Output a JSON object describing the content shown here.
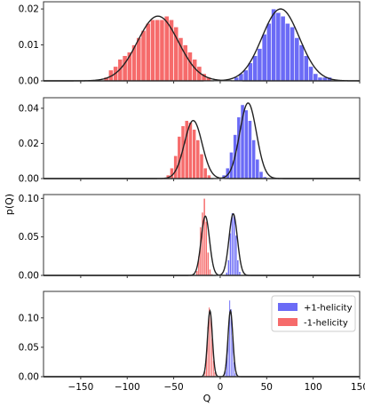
{
  "chart_data": {
    "type": "bar",
    "subtype": "histogram-with-gaussian-fit",
    "xlabel": "Q",
    "ylabel": "p(Q)",
    "xlim": [
      -190,
      150
    ],
    "xticks": [
      -150,
      -100,
      -50,
      0,
      50,
      100,
      150
    ],
    "xtick_labels": [
      "−150",
      "−100",
      "−50",
      "0",
      "50",
      "100",
      "150"
    ],
    "shared_x": true,
    "legend": {
      "placement": "top-right",
      "panel": 4,
      "entries": [
        {
          "label": "+1-helicity",
          "color": "#5b5bf5"
        },
        {
          "label": "-1-helicity",
          "color": "#f55b5b"
        }
      ]
    },
    "colors": {
      "plus": "#5b5bf5",
      "minus": "#f55b5b",
      "fit": "#222222"
    },
    "fit_line": "Gaussian fit over each histogram",
    "panels": [
      {
        "ylim": [
          0,
          0.022
        ],
        "yticks": [
          0.0,
          0.01,
          0.02
        ],
        "ytick_labels": [
          "0.00",
          "0.01",
          "0.02"
        ],
        "bin_width": 5,
        "series": [
          {
            "name": "-1-helicity",
            "color": "#f55b5b",
            "bin_start": -125,
            "values": [
              0.001,
              0.003,
              0.004,
              0.006,
              0.007,
              0.008,
              0.01,
              0.012,
              0.014,
              0.016,
              0.017,
              0.017,
              0.017,
              0.018,
              0.017,
              0.015,
              0.012,
              0.01,
              0.008,
              0.006,
              0.004,
              0.002,
              0.001
            ],
            "fit": {
              "mean": -67,
              "sigma": 22,
              "peak": 0.018
            }
          },
          {
            "name": "+1-helicity",
            "color": "#5b5bf5",
            "bin_start": 15,
            "values": [
              0.001,
              0.002,
              0.003,
              0.005,
              0.007,
              0.009,
              0.013,
              0.016,
              0.02,
              0.019,
              0.018,
              0.016,
              0.015,
              0.012,
              0.01,
              0.007,
              0.004,
              0.002,
              0.001,
              0.001,
              0.001
            ],
            "fit": {
              "mean": 65,
              "sigma": 20,
              "peak": 0.02
            }
          }
        ]
      },
      {
        "ylim": [
          0,
          0.046
        ],
        "yticks": [
          0.0,
          0.02,
          0.04
        ],
        "ytick_labels": [
          "0.00",
          "0.02",
          "0.04"
        ],
        "bin_width": 4,
        "series": [
          {
            "name": "-1-helicity",
            "color": "#f55b5b",
            "bin_start": -58,
            "values": [
              0.002,
              0.006,
              0.013,
              0.024,
              0.03,
              0.033,
              0.032,
              0.028,
              0.022,
              0.014,
              0.006,
              0.002
            ],
            "fit": {
              "mean": -29,
              "sigma": 9.5,
              "peak": 0.033
            }
          },
          {
            "name": "+1-helicity",
            "color": "#5b5bf5",
            "bin_start": 2,
            "values": [
              0.002,
              0.006,
              0.015,
              0.025,
              0.035,
              0.042,
              0.039,
              0.033,
              0.022,
              0.011,
              0.004,
              0.001
            ],
            "fit": {
              "mean": 30,
              "sigma": 9,
              "peak": 0.043
            }
          }
        ]
      },
      {
        "ylim": [
          0,
          0.105
        ],
        "yticks": [
          0.0,
          0.05,
          0.1
        ],
        "ytick_labels": [
          "0.00",
          "0.05",
          "0.10"
        ],
        "bin_width": 2,
        "series": [
          {
            "name": "-1-helicity",
            "color": "#f55b5b",
            "bin_start": -26,
            "values": [
              0.006,
              0.025,
              0.063,
              0.082,
              0.1,
              0.07,
              0.03,
              0.008,
              0.002
            ],
            "fit": {
              "mean": -16,
              "sigma": 4.5,
              "peak": 0.077
            }
          },
          {
            "name": "+1-helicity",
            "color": "#5b5bf5",
            "bin_start": 6,
            "values": [
              0.004,
              0.02,
              0.055,
              0.081,
              0.078,
              0.052,
              0.02,
              0.005
            ],
            "fit": {
              "mean": 14,
              "sigma": 4.5,
              "peak": 0.08
            }
          }
        ]
      },
      {
        "ylim": [
          0,
          0.145
        ],
        "yticks": [
          0.0,
          0.05,
          0.1
        ],
        "ytick_labels": [
          "0.00",
          "0.05",
          "0.10"
        ],
        "bin_width": 1.5,
        "series": [
          {
            "name": "-1-helicity",
            "color": "#f55b5b",
            "bin_start": -17,
            "values": [
              0.01,
              0.04,
              0.085,
              0.118,
              0.105,
              0.065,
              0.028,
              0.008
            ],
            "fit": {
              "mean": -11,
              "sigma": 2.6,
              "peak": 0.112
            }
          },
          {
            "name": "+1-helicity",
            "color": "#5b5bf5",
            "bin_start": 5,
            "values": [
              0.01,
              0.035,
              0.08,
              0.13,
              0.115,
              0.07,
              0.025,
              0.006
            ],
            "fit": {
              "mean": 11,
              "sigma": 2.6,
              "peak": 0.112
            }
          }
        ]
      }
    ]
  }
}
